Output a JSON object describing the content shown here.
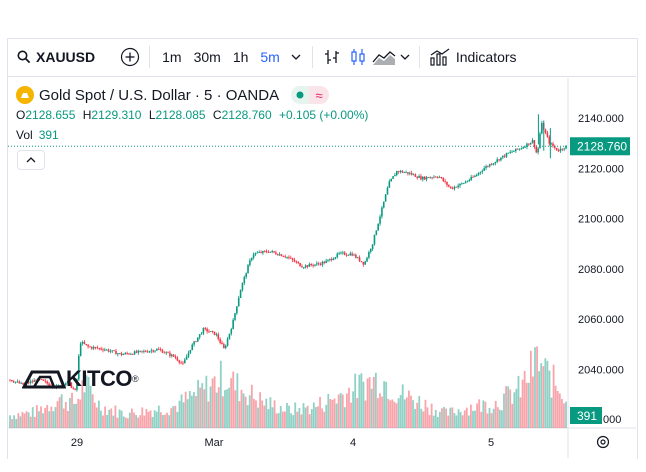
{
  "toolbar": {
    "symbol": "XAUUSD",
    "intervals": [
      "1m",
      "30m",
      "1h",
      "5m"
    ],
    "active_interval": "5m",
    "indicators_label": "Indicators"
  },
  "legend": {
    "title": "Gold Spot / U.S. Dollar · 5 · OANDA",
    "ohlc": {
      "o_label": "O",
      "o": "2128.655",
      "h_label": "H",
      "h": "2129.310",
      "l_label": "L",
      "l": "2128.085",
      "c_label": "C",
      "c": "2128.760",
      "change": "+0.105 (+0.00%)"
    },
    "vol_label": "Vol",
    "vol_value": "391"
  },
  "watermark": "KITCO",
  "colors": {
    "up": "#089981",
    "down": "#f23645",
    "accent": "#2962ff",
    "gold": "#f5b400"
  },
  "chart_data": {
    "type": "candlestick",
    "y_ticks": [
      "2040.000",
      "2060.000",
      "2080.000",
      "2100.000",
      "2120.000",
      "2140.000"
    ],
    "y_bottom_partial": ".000",
    "ylim": [
      2026,
      2149
    ],
    "x_ticks": [
      "29",
      "Mar",
      "4",
      "5"
    ],
    "last_price": "2128.760",
    "volume_label": "391",
    "price_path": [
      [
        0,
        2036
      ],
      [
        3,
        2034
      ],
      [
        7,
        2036
      ],
      [
        11,
        2033
      ],
      [
        14,
        2035
      ],
      [
        16,
        2031
      ],
      [
        17,
        2051
      ],
      [
        19,
        2049
      ],
      [
        23,
        2048
      ],
      [
        27,
        2046
      ],
      [
        32,
        2047
      ],
      [
        36,
        2048
      ],
      [
        40,
        2045
      ],
      [
        42,
        2042
      ],
      [
        44,
        2049
      ],
      [
        47,
        2056
      ],
      [
        50,
        2054
      ],
      [
        52,
        2048
      ],
      [
        54,
        2058
      ],
      [
        56,
        2072
      ],
      [
        58,
        2082
      ],
      [
        59,
        2086
      ],
      [
        63,
        2087
      ],
      [
        67,
        2085
      ],
      [
        71,
        2081
      ],
      [
        75,
        2082
      ],
      [
        77,
        2083
      ],
      [
        80,
        2086
      ],
      [
        83,
        2086
      ],
      [
        86,
        2082
      ],
      [
        88,
        2090
      ],
      [
        90,
        2102
      ],
      [
        92,
        2114
      ],
      [
        94,
        2119
      ],
      [
        97,
        2118
      ],
      [
        100,
        2116
      ],
      [
        104,
        2117
      ],
      [
        107,
        2112
      ],
      [
        110,
        2114
      ],
      [
        113,
        2117
      ],
      [
        115,
        2120
      ],
      [
        118,
        2123
      ],
      [
        121,
        2126
      ],
      [
        124,
        2128
      ],
      [
        127,
        2131
      ],
      [
        128,
        2125
      ],
      [
        129,
        2138
      ],
      [
        131,
        2130
      ],
      [
        133,
        2127
      ],
      [
        135,
        2128.76
      ]
    ],
    "volume_profile": [
      [
        0,
        0.18
      ],
      [
        6,
        0.22
      ],
      [
        12,
        0.4
      ],
      [
        16,
        0.35
      ],
      [
        18,
        0.62
      ],
      [
        22,
        0.3
      ],
      [
        28,
        0.2
      ],
      [
        34,
        0.25
      ],
      [
        40,
        0.3
      ],
      [
        46,
        0.5
      ],
      [
        52,
        0.72
      ],
      [
        56,
        0.55
      ],
      [
        62,
        0.35
      ],
      [
        68,
        0.25
      ],
      [
        74,
        0.3
      ],
      [
        80,
        0.45
      ],
      [
        86,
        0.62
      ],
      [
        90,
        0.7
      ],
      [
        94,
        0.5
      ],
      [
        100,
        0.35
      ],
      [
        106,
        0.2
      ],
      [
        112,
        0.3
      ],
      [
        118,
        0.35
      ],
      [
        124,
        0.55
      ],
      [
        128,
        0.95
      ],
      [
        131,
        0.7
      ],
      [
        135,
        0.45
      ]
    ],
    "x_range": [
      0,
      135
    ]
  }
}
